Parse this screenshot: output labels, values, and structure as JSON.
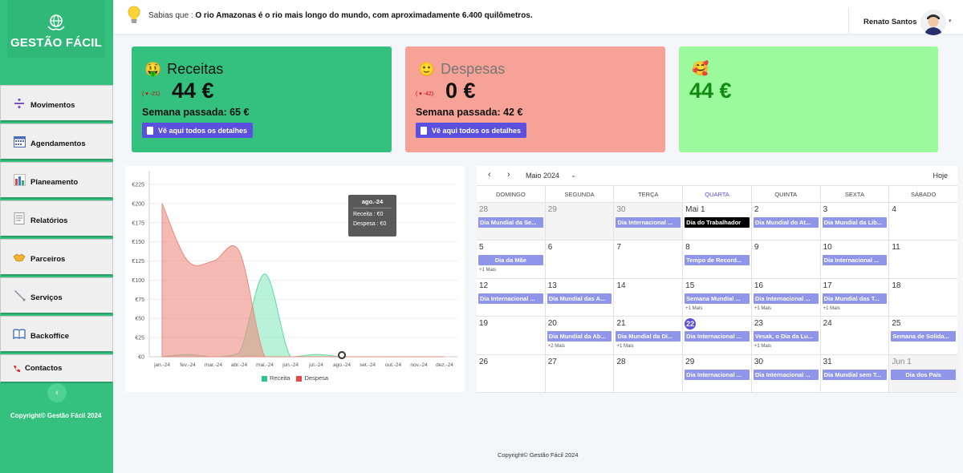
{
  "brand": {
    "name": "GESTÃO FÁCIL"
  },
  "colors": {
    "sidebar": "#34c180",
    "receitas_card": "#34c180",
    "despesas_card": "#f6a296",
    "balance_card": "#9bfa9b",
    "accent": "#5b4fe0",
    "event": "#8f95e8"
  },
  "sidebar": {
    "items": [
      {
        "label": "Movimentos",
        "icon": "divide-icon"
      },
      {
        "label": "Agendamentos",
        "icon": "calendar-grid-icon"
      },
      {
        "label": "Planeamento",
        "icon": "bar-chart-icon"
      },
      {
        "label": "Relatórios",
        "icon": "report-icon"
      },
      {
        "label": "Parceiros",
        "icon": "handshake-icon"
      },
      {
        "label": "Serviços",
        "icon": "wrench-icon"
      },
      {
        "label": "Backoffice",
        "icon": "book-icon"
      },
      {
        "label": "Contactos",
        "icon": "phone-icon"
      }
    ],
    "collapse_symbol": "‹",
    "copyright": "Copyright© Gestão Fácil 2024"
  },
  "header": {
    "fact_prefix": "Sabias que : ",
    "fact_text": "O rio Amazonas é o rio mais longo do mundo, com aproximadamente 6.400 quilômetros.",
    "user_name": "Renato Santos"
  },
  "cards": {
    "receitas": {
      "emoji": "🤑",
      "title": "Receitas",
      "delta": "( ▾ -21)",
      "amount": "44 €",
      "last_week": "Semana passada: 65 €",
      "button": "Vê aqui todos os detalhes"
    },
    "despesas": {
      "emoji": "🙂",
      "title": "Despesas",
      "delta": "( ▾ -42)",
      "amount": "0 €",
      "last_week": "Semana passada: 42 €",
      "button": "Vê aqui todos os detalhes"
    },
    "balance": {
      "emoji": "🥰",
      "amount": "44 €"
    }
  },
  "chart_data": {
    "type": "area",
    "categories": [
      "jan.-24",
      "fev.-24",
      "mar.-24",
      "abr.-24",
      "mai.-24",
      "jun.-24",
      "jul.-24",
      "ago.-24",
      "set.-24",
      "out.-24",
      "nov.-24",
      "dez.-24"
    ],
    "series": [
      {
        "name": "Receita",
        "color": "#7ee8b8",
        "values": [
          0,
          3,
          0,
          5,
          108,
          0,
          3,
          0,
          0,
          0,
          0,
          0
        ]
      },
      {
        "name": "Despesa",
        "color": "#f0a59b",
        "values": [
          200,
          125,
          125,
          138,
          0,
          0,
          0,
          0,
          0,
          0,
          0,
          0
        ]
      }
    ],
    "ylim": [
      0,
      225
    ],
    "yticks": [
      "€0",
      "€25",
      "€50",
      "€75",
      "€100",
      "€125",
      "€150",
      "€175",
      "€200",
      "€225"
    ],
    "tooltip": {
      "title": "ago.-24",
      "receita": "Receita : €0",
      "despesa": "Despesa : €0"
    },
    "legend_position": "bottom"
  },
  "calendar": {
    "month": "Maio 2024",
    "today_label": "Hoje",
    "weekdays": [
      "DOMINGO",
      "SEGUNDA",
      "TERÇA",
      "QUARTA",
      "QUINTA",
      "SEXTA",
      "SÁBADO"
    ],
    "current_weekday_index": 3,
    "weeks": [
      [
        {
          "day": "28",
          "other": true,
          "event": "Dia Mundial da Se..."
        },
        {
          "day": "29",
          "other": true
        },
        {
          "day": "30",
          "other": true,
          "event": "Dia Internacional ..."
        },
        {
          "day": "Mai 1",
          "event": "Dia do Trabalhador",
          "dark": true
        },
        {
          "day": "2",
          "event": "Dia Mundial do At..."
        },
        {
          "day": "3",
          "event": "Dia Mundial da Lib..."
        },
        {
          "day": "4"
        }
      ],
      [
        {
          "day": "5",
          "event": "Dia da Mãe",
          "center": true,
          "more": "+1 Mais"
        },
        {
          "day": "6"
        },
        {
          "day": "7"
        },
        {
          "day": "8",
          "event": "Tempo de Record..."
        },
        {
          "day": "9"
        },
        {
          "day": "10",
          "event": "Dia Internacional ..."
        },
        {
          "day": "11"
        }
      ],
      [
        {
          "day": "12",
          "event": "Dia Internacional ..."
        },
        {
          "day": "13",
          "event": "Dia Mundial das A..."
        },
        {
          "day": "14"
        },
        {
          "day": "15",
          "event": "Semana Mundial ...",
          "more": "+1 Mais"
        },
        {
          "day": "16",
          "event": "Dia Internacional ...",
          "more": "+1 Mais"
        },
        {
          "day": "17",
          "event": "Dia Mundial das T...",
          "more": "+1 Mais"
        },
        {
          "day": "18"
        }
      ],
      [
        {
          "day": "19"
        },
        {
          "day": "20",
          "event": "Dia Mundial da Ab...",
          "more": "+2 Mais"
        },
        {
          "day": "21",
          "event": "Dia Mundial da Di...",
          "more": "+1 Mais"
        },
        {
          "day": "22",
          "today": true,
          "event": "Dia Internacional ..."
        },
        {
          "day": "23",
          "event": "Vesak, o Dia da Lu...",
          "more": "+1 Mais"
        },
        {
          "day": "24"
        },
        {
          "day": "25",
          "event": "Semana de Solida..."
        }
      ],
      [
        {
          "day": "26"
        },
        {
          "day": "27"
        },
        {
          "day": "28"
        },
        {
          "day": "29",
          "event": "Dia Internacional ..."
        },
        {
          "day": "30",
          "event": "Dia Internacional ..."
        },
        {
          "day": "31",
          "event": "Dia Mundial sem T..."
        },
        {
          "day": "Jun 1",
          "other": true,
          "event": "Dia dos Pais",
          "center": true
        }
      ]
    ]
  },
  "footer": {
    "text": "Copyright© Gestão Fácil 2024"
  }
}
